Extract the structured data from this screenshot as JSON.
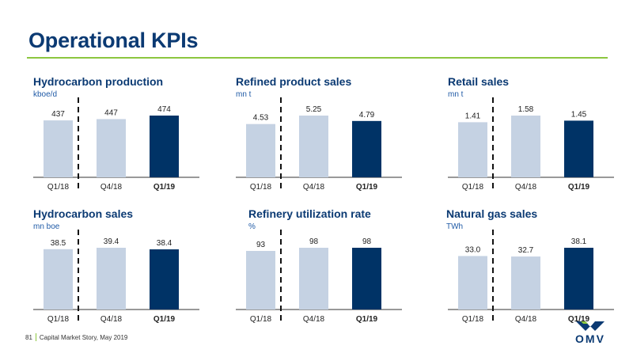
{
  "page": {
    "title": "Operational KPIs",
    "footer_page": "81",
    "footer_text": "Capital Market Story, May 2019",
    "logo_text": "OMV"
  },
  "colors": {
    "brand_blue": "#0b3a73",
    "light_bar": "#c5d2e3",
    "dark_bar": "#003366",
    "accent_green": "#8cc63f"
  },
  "chart_data": [
    {
      "type": "bar",
      "title": "Hydrocarbon production",
      "unit": "kboe/d",
      "categories": [
        "Q1/18",
        "Q4/18",
        "Q1/19"
      ],
      "values": [
        437,
        447,
        474
      ],
      "labels": [
        "437",
        "447",
        "474"
      ],
      "highlight_last": true
    },
    {
      "type": "bar",
      "title": "Refined product sales",
      "unit": "mn t",
      "categories": [
        "Q1/18",
        "Q4/18",
        "Q1/19"
      ],
      "values": [
        4.53,
        5.25,
        4.79
      ],
      "labels": [
        "4.53",
        "5.25",
        "4.79"
      ],
      "highlight_last": true
    },
    {
      "type": "bar",
      "title": "Retail sales",
      "unit": "mn t",
      "categories": [
        "Q1/18",
        "Q4/18",
        "Q1/19"
      ],
      "values": [
        1.41,
        1.58,
        1.45
      ],
      "labels": [
        "1.41",
        "1.58",
        "1.45"
      ],
      "highlight_last": true
    },
    {
      "type": "bar",
      "title": "Hydrocarbon sales",
      "unit": "mn boe",
      "categories": [
        "Q1/18",
        "Q4/18",
        "Q1/19"
      ],
      "values": [
        38.5,
        39.4,
        38.4
      ],
      "labels": [
        "38.5",
        "39.4",
        "38.4"
      ],
      "highlight_last": true
    },
    {
      "type": "bar",
      "title": "Refinery utilization rate",
      "unit": "%",
      "categories": [
        "Q1/18",
        "Q4/18",
        "Q1/19"
      ],
      "values": [
        93,
        98,
        98
      ],
      "labels": [
        "93",
        "98",
        "98"
      ],
      "highlight_last": true
    },
    {
      "type": "bar",
      "title": "Natural gas sales",
      "unit": "TWh",
      "categories": [
        "Q1/18",
        "Q4/18",
        "Q1/19"
      ],
      "values": [
        33.0,
        32.7,
        38.1
      ],
      "labels": [
        "33.0",
        "32.7",
        "38.1"
      ],
      "highlight_last": true
    }
  ]
}
